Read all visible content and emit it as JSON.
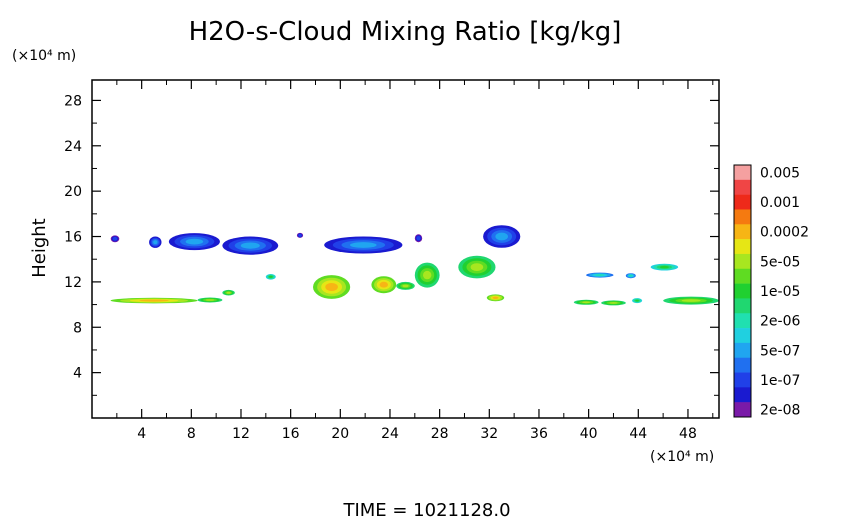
{
  "chart_data": {
    "type": "heatmap",
    "title": "H2O-s-Cloud Mixing Ratio [kg/kg]",
    "ylabel": "Height",
    "x_unit": "(×10⁴ m)",
    "y_unit": "(×10⁴ m)",
    "x_range": [
      0,
      50.5
    ],
    "y_range": [
      0,
      29.8
    ],
    "x_ticks": [
      4,
      8,
      12,
      16,
      20,
      24,
      28,
      32,
      36,
      40,
      44,
      48
    ],
    "y_ticks": [
      4,
      8,
      12,
      16,
      20,
      24,
      28
    ],
    "legend": {
      "position": "right",
      "levels": [
        {
          "label": "0.005",
          "color": "#f5a0a0"
        },
        {
          "label": "",
          "color": "#f04545"
        },
        {
          "label": "0.001",
          "color": "#ee2a1a"
        },
        {
          "label": "",
          "color": "#f57a10"
        },
        {
          "label": "0.0002",
          "color": "#f7b515"
        },
        {
          "label": "",
          "color": "#e6e615"
        },
        {
          "label": "5e-05",
          "color": "#a8e620"
        },
        {
          "label": "",
          "color": "#5fdc22"
        },
        {
          "label": "1e-05",
          "color": "#20d030"
        },
        {
          "label": "",
          "color": "#20d770"
        },
        {
          "label": "2e-06",
          "color": "#20e0b0"
        },
        {
          "label": "",
          "color": "#20d0e0"
        },
        {
          "label": "5e-07",
          "color": "#20a5f0"
        },
        {
          "label": "",
          "color": "#2070f0"
        },
        {
          "label": "1e-07",
          "color": "#2040e8"
        },
        {
          "label": "",
          "color": "#1a1ad0"
        },
        {
          "label": "2e-08",
          "color": "#7a1aa8"
        }
      ]
    },
    "cloud_patches": [
      {
        "x0": 1.5,
        "x1": 2.2,
        "y0": 15.5,
        "y1": 16.1,
        "core": 1e-07
      },
      {
        "x0": 4.6,
        "x1": 5.6,
        "y0": 15.0,
        "y1": 16.0,
        "core": 5e-07
      },
      {
        "x0": 6.2,
        "x1": 10.3,
        "y0": 14.8,
        "y1": 16.3,
        "core": 5e-07
      },
      {
        "x0": 10.5,
        "x1": 15.0,
        "y0": 14.4,
        "y1": 16.0,
        "core": 5e-07
      },
      {
        "x0": 16.5,
        "x1": 17.0,
        "y0": 15.9,
        "y1": 16.3,
        "core": 1e-07
      },
      {
        "x0": 18.7,
        "x1": 25.0,
        "y0": 14.5,
        "y1": 16.0,
        "core": 5e-07
      },
      {
        "x0": 26.0,
        "x1": 26.6,
        "y0": 15.5,
        "y1": 16.2,
        "core": 1e-07
      },
      {
        "x0": 31.5,
        "x1": 34.5,
        "y0": 15.0,
        "y1": 17.0,
        "core": 5e-07
      },
      {
        "x0": 1.5,
        "x1": 8.5,
        "y0": 10.1,
        "y1": 10.6,
        "core": 0.0002
      },
      {
        "x0": 8.5,
        "x1": 10.5,
        "y0": 10.2,
        "y1": 10.6,
        "core": 5e-05
      },
      {
        "x0": 10.5,
        "x1": 11.5,
        "y0": 10.8,
        "y1": 11.3,
        "core": 5e-05
      },
      {
        "x0": 14.0,
        "x1": 14.8,
        "y0": 12.2,
        "y1": 12.7,
        "core": 1e-05
      },
      {
        "x0": 17.8,
        "x1": 20.8,
        "y0": 10.5,
        "y1": 12.6,
        "core": 0.0002
      },
      {
        "x0": 22.5,
        "x1": 24.5,
        "y0": 11.0,
        "y1": 12.5,
        "core": 0.0002
      },
      {
        "x0": 24.5,
        "x1": 26.0,
        "y0": 11.3,
        "y1": 12.0,
        "core": 5e-05
      },
      {
        "x0": 26.0,
        "x1": 28.0,
        "y0": 11.5,
        "y1": 13.7,
        "core": 5e-05
      },
      {
        "x0": 29.5,
        "x1": 32.5,
        "y0": 12.3,
        "y1": 14.3,
        "core": 5e-05
      },
      {
        "x0": 31.8,
        "x1": 33.2,
        "y0": 10.3,
        "y1": 10.9,
        "core": 0.0002
      },
      {
        "x0": 38.8,
        "x1": 40.8,
        "y0": 10.0,
        "y1": 10.4,
        "core": 5e-05
      },
      {
        "x0": 41.0,
        "x1": 43.0,
        "y0": 10.0,
        "y1": 10.3,
        "core": 5e-05
      },
      {
        "x0": 43.5,
        "x1": 44.3,
        "y0": 10.2,
        "y1": 10.5,
        "core": 1e-05
      },
      {
        "x0": 39.8,
        "x1": 42.0,
        "y0": 12.4,
        "y1": 12.8,
        "core": 2e-06
      },
      {
        "x0": 43.0,
        "x1": 43.8,
        "y0": 12.4,
        "y1": 12.7,
        "core": 2e-06
      },
      {
        "x0": 45.0,
        "x1": 47.2,
        "y0": 13.0,
        "y1": 13.6,
        "core": 1e-05
      },
      {
        "x0": 46.0,
        "x1": 50.5,
        "y0": 10.0,
        "y1": 10.7,
        "core": 5e-05
      }
    ]
  },
  "footer": {
    "time_label": "TIME  =  1021128.0"
  }
}
